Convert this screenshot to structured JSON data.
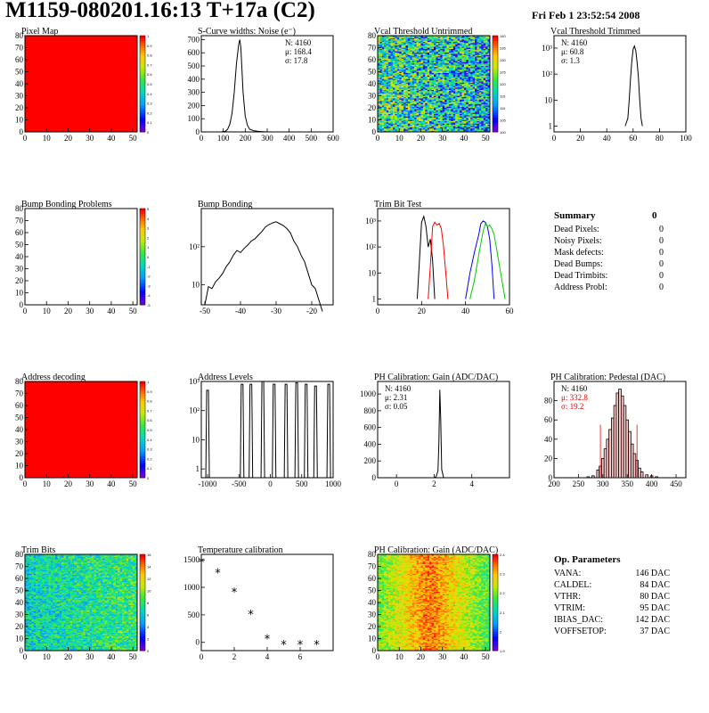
{
  "header": {
    "title": "M1159-080201.16:13 T+17a (C2)",
    "date": "Fri Feb  1 23:52:54 2008"
  },
  "panels": {
    "pixel_map": {
      "title": "Pixel Map",
      "colorbar_ticks": [
        "1",
        "0.9",
        "0.8",
        "0.7",
        "0.6",
        "0.5",
        "0.4",
        "0.3",
        "0.2",
        "0.1",
        "0"
      ],
      "xticks": [
        "0",
        "10",
        "20",
        "30",
        "40",
        "50"
      ],
      "yticks": [
        "0",
        "10",
        "20",
        "30",
        "40",
        "50",
        "60",
        "70",
        "80"
      ]
    },
    "scurve": {
      "title": "S-Curve widths: Noise (e⁻)",
      "stats": {
        "n": "N: 4160",
        "mu": "μ: 168.4",
        "sigma": "σ: 17.8"
      },
      "xticks": [
        "0",
        "100",
        "200",
        "300",
        "400",
        "500",
        "600"
      ],
      "yticks": [
        "0",
        "100",
        "200",
        "300",
        "400",
        "500",
        "600",
        "700"
      ]
    },
    "vcal_untrimmed": {
      "title": "Vcal Threshold Untrimmed",
      "colorbar_ticks": [
        "140",
        "135",
        "130",
        "125",
        "120",
        "115",
        "110",
        "105",
        "100"
      ],
      "xticks": [
        "0",
        "10",
        "20",
        "30",
        "40",
        "50"
      ],
      "yticks": [
        "0",
        "10",
        "20",
        "30",
        "40",
        "50",
        "60",
        "70",
        "80"
      ]
    },
    "vcal_trimmed": {
      "title": "Vcal Threshold Trimmed",
      "stats": {
        "n": "N: 4160",
        "mu": "μ: 60.8",
        "sigma": "σ:  1.3"
      },
      "xticks": [
        "0",
        "20",
        "40",
        "60",
        "80",
        "100"
      ],
      "yticks": [
        "1",
        "10",
        "10²",
        "10³"
      ]
    },
    "bump_problems": {
      "title": "Bump Bonding Problems",
      "colorbar_ticks": [
        "5",
        "4",
        "3",
        "2",
        "1",
        "0",
        "-1",
        "-2",
        "-3",
        "-4",
        "-5"
      ],
      "xticks": [
        "0",
        "10",
        "20",
        "30",
        "40",
        "50"
      ],
      "yticks": [
        "0",
        "10",
        "20",
        "30",
        "40",
        "50",
        "60",
        "70",
        "80"
      ]
    },
    "bump_bonding": {
      "title": "Bump Bonding",
      "xticks": [
        "-50",
        "-40",
        "-30",
        "-20"
      ],
      "yticks": [
        "10",
        "10²"
      ]
    },
    "trim_bit_test": {
      "title": "Trim Bit Test",
      "xticks": [
        "0",
        "20",
        "40",
        "60"
      ],
      "yticks": [
        "1",
        "10",
        "10²",
        "10³"
      ]
    },
    "address_decoding": {
      "title": "Address decoding",
      "colorbar_ticks": [
        "1",
        "0.9",
        "0.8",
        "0.7",
        "0.6",
        "0.5",
        "0.4",
        "0.3",
        "0.2",
        "0.1",
        "0"
      ],
      "xticks": [
        "0",
        "10",
        "20",
        "30",
        "40",
        "50"
      ],
      "yticks": [
        "0",
        "10",
        "20",
        "30",
        "40",
        "50",
        "60",
        "70",
        "80"
      ]
    },
    "address_levels": {
      "title": "Address Levels",
      "xticks": [
        "-1000",
        "-500",
        "0",
        "500",
        "1000"
      ],
      "yticks": [
        "1",
        "10",
        "10²",
        "10³"
      ]
    },
    "ph_gain": {
      "title": "PH Calibration: Gain (ADC/DAC)",
      "stats": {
        "n": "N: 4160",
        "mu": "μ: 2.31",
        "sigma": "σ: 0.05"
      },
      "xticks": [
        "0",
        "2",
        "4"
      ],
      "yticks": [
        "0",
        "200",
        "400",
        "600",
        "800",
        "1000"
      ]
    },
    "ph_pedestal": {
      "title": "PH Calibration: Pedestal (DAC)",
      "stats": {
        "n": "N: 4160",
        "mu": "μ: 332.8",
        "sigma": "σ: 19.2"
      },
      "xticks": [
        "200",
        "250",
        "300",
        "350",
        "400",
        "450"
      ],
      "yticks": [
        "0",
        "20",
        "40",
        "60",
        "80"
      ]
    },
    "trim_bits": {
      "title": "Trim Bits",
      "colorbar_ticks": [
        "16",
        "14",
        "12",
        "10",
        "8",
        "6",
        "4",
        "2",
        "0"
      ],
      "xticks": [
        "0",
        "10",
        "20",
        "30",
        "40",
        "50"
      ],
      "yticks": [
        "0",
        "10",
        "20",
        "30",
        "40",
        "50",
        "60",
        "70",
        "80"
      ]
    },
    "temperature": {
      "title": "Temperature calibration",
      "xticks": [
        "0",
        "2",
        "4",
        "6"
      ],
      "yticks": [
        "0",
        "500",
        "1000",
        "1500"
      ]
    },
    "ph_gain_map": {
      "title": "PH Calibration: Gain (ADC/DAC)",
      "colorbar_ticks": [
        "2.4",
        "2.3",
        "2.2",
        "2.1",
        "2",
        "1.9"
      ],
      "xticks": [
        "0",
        "10",
        "20",
        "30",
        "40",
        "50"
      ],
      "yticks": [
        "0",
        "10",
        "20",
        "30",
        "40",
        "50",
        "60",
        "70",
        "80"
      ]
    }
  },
  "summary": {
    "title": "Summary",
    "total": "0",
    "rows": [
      {
        "label": "Dead Pixels:",
        "value": "0"
      },
      {
        "label": "Noisy Pixels:",
        "value": "0"
      },
      {
        "label": "Mask defects:",
        "value": "0"
      },
      {
        "label": "Dead Bumps:",
        "value": "0"
      },
      {
        "label": "Dead Trimbits:",
        "value": "0"
      },
      {
        "label": "Address Probl:",
        "value": "0"
      }
    ]
  },
  "op_params": {
    "title": "Op. Parameters",
    "rows": [
      {
        "label": "VANA:",
        "value": "146 DAC"
      },
      {
        "label": "CALDEL:",
        "value": "84 DAC"
      },
      {
        "label": "VTHR:",
        "value": "80 DAC"
      },
      {
        "label": "VTRIM:",
        "value": "95 DAC"
      },
      {
        "label": "IBIAS_DAC:",
        "value": "142 DAC"
      },
      {
        "label": "VOFFSETOP:",
        "value": "37 DAC"
      }
    ]
  },
  "chart_data": [
    {
      "type": "heatmap",
      "title": "Pixel Map",
      "x_range": [
        0,
        52
      ],
      "y_range": [
        0,
        80
      ],
      "fill_color": "#ff0000",
      "uniform": true
    },
    {
      "type": "line",
      "title": "S-Curve widths: Noise (e⁻)",
      "x": [
        90,
        110,
        120,
        130,
        140,
        150,
        160,
        170,
        175,
        180,
        185,
        190,
        200,
        210,
        220,
        240,
        260,
        280,
        300
      ],
      "y": [
        0,
        5,
        20,
        60,
        140,
        300,
        520,
        660,
        700,
        640,
        480,
        300,
        120,
        50,
        20,
        8,
        4,
        2,
        0
      ],
      "xlim": [
        0,
        600
      ],
      "ylim": [
        0,
        730
      ]
    },
    {
      "type": "heatmap",
      "title": "Vcal Threshold Untrimmed",
      "x_range": [
        0,
        52
      ],
      "y_range": [
        0,
        80
      ],
      "z_range": [
        100,
        140
      ]
    },
    {
      "type": "line",
      "title": "Vcal Threshold Trimmed",
      "x": [
        54,
        56,
        57,
        58,
        59,
        60,
        61,
        62,
        63,
        64,
        65,
        66,
        67
      ],
      "y": [
        1,
        2,
        10,
        60,
        300,
        900,
        1200,
        800,
        300,
        80,
        10,
        2,
        1
      ],
      "xlim": [
        0,
        100
      ],
      "ylim": [
        0.6,
        3000
      ],
      "log_y": true
    },
    {
      "type": "heatmap",
      "title": "Bump Bonding Problems",
      "x_range": [
        0,
        52
      ],
      "y_range": [
        0,
        80
      ],
      "z_range": [
        -5,
        5
      ],
      "empty": true
    },
    {
      "type": "line",
      "title": "Bump Bonding",
      "x": [
        -50,
        -49,
        -48,
        -47,
        -46,
        -45,
        -44,
        -43,
        -42,
        -41,
        -40,
        -39,
        -38,
        -37,
        -36,
        -35,
        -34,
        -33,
        -32,
        -31,
        -30,
        -29,
        -28,
        -27,
        -26,
        -25,
        -24,
        -23,
        -22,
        -21,
        -20,
        -19,
        -18,
        -17
      ],
      "y": [
        3,
        9,
        8,
        12,
        15,
        20,
        30,
        40,
        60,
        80,
        70,
        90,
        110,
        140,
        160,
        200,
        250,
        330,
        380,
        420,
        450,
        400,
        360,
        300,
        230,
        140,
        100,
        60,
        40,
        20,
        10,
        8,
        4,
        2
      ],
      "xlim": [
        -51,
        -14
      ],
      "ylim": [
        3,
        1000
      ],
      "log_y": true
    },
    {
      "type": "line",
      "title": "Trim Bit Test",
      "series": [
        {
          "color": "#000000",
          "x": [
            18,
            19,
            20,
            21,
            22,
            23,
            24,
            25,
            26
          ],
          "y": [
            1,
            30,
            900,
            1500,
            600,
            100,
            200,
            30,
            1
          ]
        },
        {
          "color": "#ff0000",
          "x": [
            23,
            24,
            25,
            26,
            27,
            28,
            29,
            30,
            31,
            32
          ],
          "y": [
            1,
            20,
            600,
            900,
            700,
            800,
            500,
            100,
            10,
            1
          ]
        },
        {
          "color": "#0000ff",
          "x": [
            40,
            42,
            44,
            46,
            47,
            48,
            49,
            50,
            51,
            52,
            53
          ],
          "y": [
            1,
            10,
            60,
            300,
            800,
            1000,
            900,
            600,
            200,
            20,
            1
          ]
        },
        {
          "color": "#00cc00",
          "x": [
            42,
            44,
            46,
            48,
            49,
            50,
            51,
            52,
            53,
            54,
            56,
            58
          ],
          "y": [
            1,
            5,
            50,
            400,
            800,
            600,
            700,
            500,
            300,
            100,
            10,
            1
          ]
        }
      ],
      "xlim": [
        0,
        60
      ],
      "ylim": [
        0.6,
        3000
      ],
      "log_y": true
    },
    {
      "type": "heatmap",
      "title": "Address decoding",
      "x_range": [
        0,
        52
      ],
      "y_range": [
        0,
        80
      ],
      "fill_color": "#ff0000",
      "uniform": true
    },
    {
      "type": "bar",
      "title": "Address Levels",
      "x": [
        -1000,
        -450,
        -310,
        -120,
        60,
        250,
        420,
        570,
        720,
        930
      ],
      "y": [
        500,
        800,
        800,
        1000,
        800,
        800,
        900,
        800,
        700,
        800
      ],
      "xlim": [
        -1100,
        1000
      ],
      "ylim": [
        0.5,
        1000
      ],
      "log_y": true
    },
    {
      "type": "line",
      "title": "PH Calibration: Gain (ADC/DAC)",
      "x": [
        2.0,
        2.1,
        2.2,
        2.25,
        2.3,
        2.35,
        2.4,
        2.5
      ],
      "y": [
        0,
        10,
        80,
        400,
        1050,
        700,
        100,
        0
      ],
      "xlim": [
        -1,
        6
      ],
      "ylim": [
        0,
        1150
      ]
    },
    {
      "type": "bar",
      "title": "PH Calibration: Pedestal (DAC)",
      "x": [
        270,
        280,
        290,
        295,
        300,
        305,
        310,
        315,
        320,
        325,
        330,
        335,
        340,
        345,
        350,
        355,
        360,
        365,
        370,
        375,
        380,
        390,
        400,
        410
      ],
      "y": [
        1,
        2,
        8,
        12,
        20,
        30,
        40,
        50,
        62,
        75,
        88,
        92,
        85,
        75,
        60,
        48,
        35,
        25,
        18,
        10,
        6,
        3,
        2,
        1
      ],
      "xlim": [
        200,
        470
      ],
      "ylim": [
        0,
        100
      ],
      "fit_color": "#ff0000"
    },
    {
      "type": "heatmap",
      "title": "Trim Bits",
      "x_range": [
        0,
        52
      ],
      "y_range": [
        0,
        80
      ],
      "z_range": [
        0,
        16
      ]
    },
    {
      "type": "scatter",
      "title": "Temperature calibration",
      "x": [
        0,
        1,
        2,
        3,
        4,
        5,
        6,
        7
      ],
      "y": [
        1450,
        1250,
        900,
        500,
        50,
        -50,
        -50,
        -50
      ],
      "xlim": [
        0,
        8
      ],
      "ylim": [
        -150,
        1600
      ],
      "marker": "*"
    },
    {
      "type": "heatmap",
      "title": "PH Calibration: Gain (ADC/DAC)",
      "x_range": [
        0,
        52
      ],
      "y_range": [
        0,
        80
      ],
      "z_range": [
        1.85,
        2.45
      ]
    }
  ]
}
